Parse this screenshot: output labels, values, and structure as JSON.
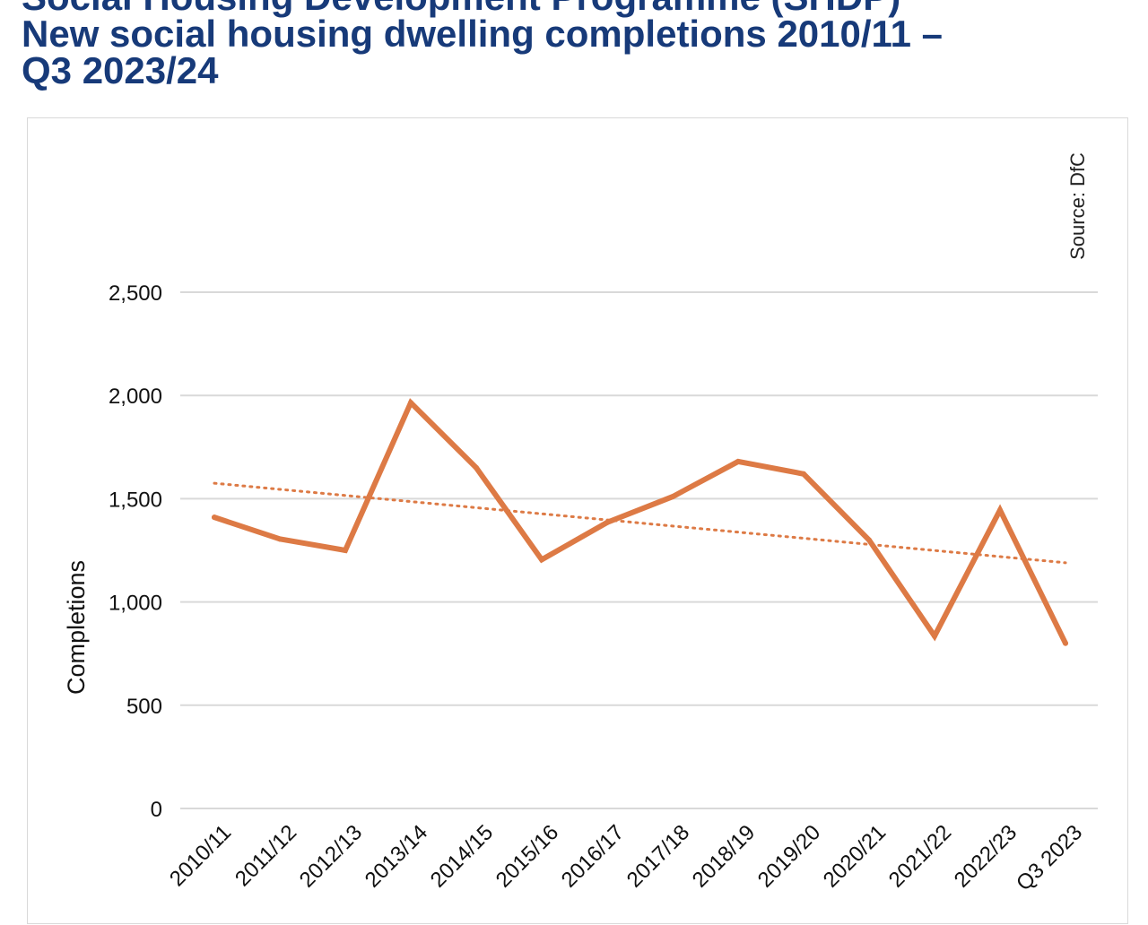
{
  "title_lines": [
    "Social Housing Development Programme (SHDP)",
    "New social housing dwelling completions 2010/11 –",
    "Q3 2023/24"
  ],
  "source": "Source: DfC",
  "colors": {
    "title": "#173a79",
    "series": "#dd7a45",
    "grid": "#d9d9d9"
  },
  "chart_data": {
    "type": "line",
    "title": "Social Housing Development Programme (SHDP) New social housing dwelling completions 2010/11 – Q3 2023/24",
    "xlabel": "",
    "ylabel": "Completions",
    "categories": [
      "2010/11",
      "2011/12",
      "2012/13",
      "2013/14",
      "2014/15",
      "2015/16",
      "2016/17",
      "2017/18",
      "2018/19",
      "2019/20",
      "2020/21",
      "2021/22",
      "2022/23",
      "Q3 2023"
    ],
    "series": [
      {
        "values": [
          1410,
          1305,
          1250,
          1965,
          1650,
          1205,
          1385,
          1510,
          1680,
          1620,
          1300,
          835,
          1445,
          800
        ],
        "line_style": "solid"
      }
    ],
    "trendline": {
      "type": "linear",
      "line_style": "dotted",
      "start": 1575,
      "end": 1190
    },
    "ylim": [
      0,
      2500
    ],
    "yticks": [
      0,
      500,
      1000,
      1500,
      2000,
      2500
    ],
    "ytick_labels": [
      "0",
      "500",
      "1,000",
      "1,500",
      "2,000",
      "2,500"
    ],
    "grid": true,
    "legend": "none",
    "source": "Source: DfC"
  }
}
